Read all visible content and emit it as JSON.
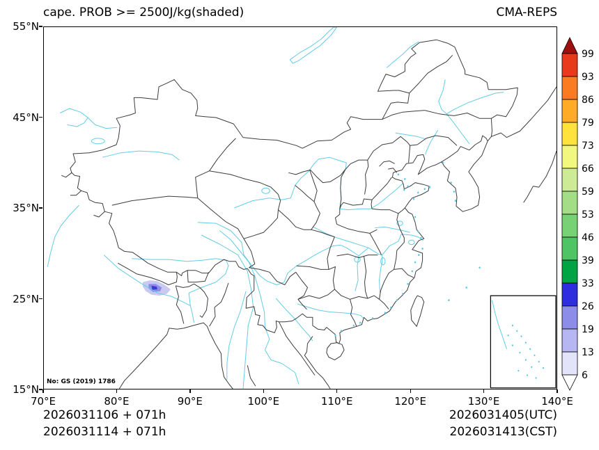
{
  "title": "cape. PROB >= 2500J/kg(shaded)",
  "model_label": "CMA-REPS",
  "watermark": "No: GS (2019) 1786",
  "axes": {
    "x_ticks": [
      "70°E",
      "80°E",
      "90°E",
      "100°E",
      "110°E",
      "120°E",
      "130°E",
      "140°E"
    ],
    "y_ticks": [
      "55°N",
      "45°N",
      "35°N",
      "25°N",
      "15°N"
    ]
  },
  "colorbar": {
    "levels_top_to_bottom": [
      "99",
      "93",
      "86",
      "79",
      "73",
      "66",
      "59",
      "53",
      "46",
      "39",
      "33",
      "26",
      "19",
      "13",
      "6"
    ],
    "over_color": "#9e0f0f",
    "under_color": "#ffffff",
    "segment_colors_top_to_bottom": [
      "#e8391d",
      "#fb7b20",
      "#ffab26",
      "#ffe23c",
      "#f2f77e",
      "#cdeb97",
      "#a3de86",
      "#79d176",
      "#4ec464",
      "#00a443",
      "#2e2ee0",
      "#8c8ce9",
      "#b6b6f2",
      "#e3e3f9"
    ]
  },
  "footer": {
    "init_utc": "2026031106 + 071h",
    "init_cst": "2026031114 + 071h",
    "valid_utc": "2026031405(UTC)",
    "valid_cst": "2026031413(CST)"
  },
  "map": {
    "region": "China and surroundings",
    "lon_range_label": "70°E to 140°E",
    "lat_range_label": "15°N to 55°N",
    "inset_label": "South China Sea inset",
    "shaded_region": {
      "description": "CAPE >= 2500 J/kg probability shading, small patch near southern Himalaya",
      "approx_lon": "84E-87.5E",
      "approx_lat": "25.3N-27N",
      "max_category_shown": "26-33"
    }
  },
  "chart_data": {
    "type": "map-shaded-probability",
    "title": "cape. PROB >= 2500J/kg(shaded)",
    "model": "CMA-REPS",
    "lon_range": [
      70,
      140
    ],
    "lat_range": [
      15,
      55
    ],
    "probability_levels": [
      6,
      13,
      19,
      26,
      33,
      39,
      46,
      53,
      59,
      66,
      73,
      79,
      86,
      93,
      99
    ],
    "shaded_cells": [
      {
        "lon": 85.0,
        "lat": 26.1,
        "prob_range": "19-33"
      },
      {
        "lon": 85.8,
        "lat": 26.2,
        "prob_range": "6-19"
      }
    ]
  }
}
